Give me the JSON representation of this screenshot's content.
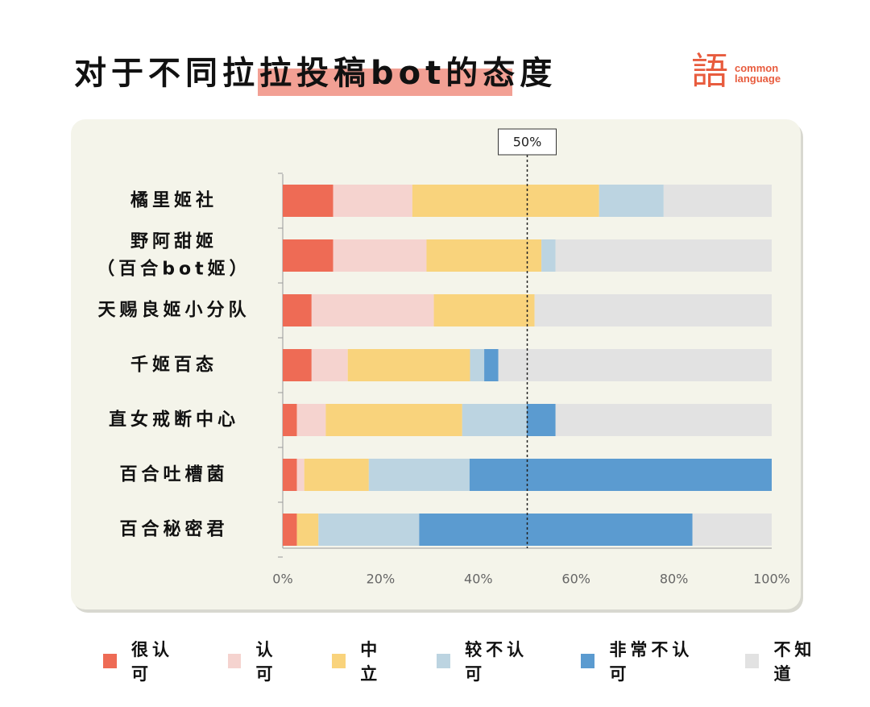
{
  "title": "对于不同拉拉投稿bot的态度",
  "logo": {
    "char": "語",
    "line1": "common",
    "line2": "language"
  },
  "chart_data": {
    "type": "bar",
    "orientation": "horizontal",
    "stacked": true,
    "categories": [
      [
        "橘里姬社"
      ],
      [
        "野阿甜姬",
        "（百合bot姬）"
      ],
      [
        "天赐良姬小分队"
      ],
      [
        "千姬百态"
      ],
      [
        "直女戒断中心"
      ],
      [
        "百合吐槽菌"
      ],
      [
        "百合秘密君"
      ]
    ],
    "series": [
      {
        "name": "很认可",
        "color": "#ee6b55",
        "values": [
          10.3,
          10.3,
          5.9,
          5.9,
          2.9,
          2.9,
          2.9
        ]
      },
      {
        "name": "认可",
        "color": "#f5d3cf",
        "values": [
          16.2,
          19.1,
          25.0,
          7.4,
          5.9,
          1.5,
          0
        ]
      },
      {
        "name": "中立",
        "color": "#f9d37c",
        "values": [
          38.2,
          23.5,
          20.6,
          25.0,
          27.9,
          13.2,
          4.4
        ]
      },
      {
        "name": "较不认可",
        "color": "#bcd4e1",
        "values": [
          13.2,
          2.9,
          0,
          2.9,
          13.2,
          20.6,
          20.6
        ]
      },
      {
        "name": "非常不认可",
        "color": "#5b9bd0",
        "values": [
          0,
          0,
          0,
          2.9,
          5.9,
          61.8,
          55.9
        ]
      },
      {
        "name": "不知道",
        "color": "#e2e2e2",
        "values": [
          22.1,
          44.2,
          48.5,
          55.9,
          44.2,
          0,
          16.2
        ]
      }
    ],
    "xlim": [
      0,
      100
    ],
    "xticks": [
      "0%",
      "20%",
      "40%",
      "60%",
      "80%",
      "100%"
    ],
    "reference_line": {
      "value": 50,
      "label": "50%"
    },
    "legend_position": "bottom"
  }
}
